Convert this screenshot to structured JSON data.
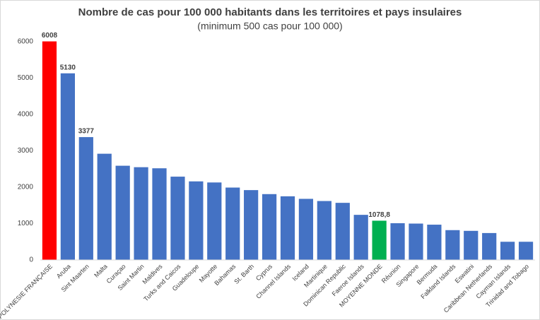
{
  "chart_data": {
    "type": "bar",
    "title": "Nombre de cas pour 100 000 habitants dans les territoires et pays insulaires",
    "subtitle": "(minimum 500 cas pour 100 000)",
    "categories": [
      "POLYNESIE FRANÇAISE",
      "Aruba",
      "Sint Maarten",
      "Malta",
      "Curaçao",
      "Saint Martin",
      "Maldives",
      "Turks and Caicos",
      "Guadeloupe",
      "Mayotte",
      "Bahamas",
      "St. Barth",
      "Cyprus",
      "Channel Islands",
      "Iceland",
      "Martinique",
      "Dominican Republic",
      "Faeroe Islands",
      "MOYENNE MONDE",
      "Réunion",
      "Singapore",
      "Bermuda",
      "Falkland Islands",
      "Eswatini",
      "Caribbean Netherlands",
      "Cayman Islands",
      "Trinidad and Tobago"
    ],
    "values": [
      6008,
      5130,
      3377,
      2920,
      2590,
      2550,
      2520,
      2290,
      2160,
      2130,
      1990,
      1920,
      1810,
      1750,
      1680,
      1620,
      1570,
      1240,
      1078.8,
      1010,
      1000,
      970,
      820,
      800,
      740,
      500,
      500
    ],
    "value_labels": [
      "6008",
      "5130",
      "3377",
      null,
      null,
      null,
      null,
      null,
      null,
      null,
      null,
      null,
      null,
      null,
      null,
      null,
      null,
      null,
      "1078,8",
      null,
      null,
      null,
      null,
      null,
      null,
      null,
      null
    ],
    "colors": [
      "#ff0000",
      "#4472c4",
      "#4472c4",
      "#4472c4",
      "#4472c4",
      "#4472c4",
      "#4472c4",
      "#4472c4",
      "#4472c4",
      "#4472c4",
      "#4472c4",
      "#4472c4",
      "#4472c4",
      "#4472c4",
      "#4472c4",
      "#4472c4",
      "#4472c4",
      "#4472c4",
      "#00b050",
      "#4472c4",
      "#4472c4",
      "#4472c4",
      "#4472c4",
      "#4472c4",
      "#4472c4",
      "#4472c4",
      "#4472c4"
    ],
    "ylim": [
      0,
      6000
    ],
    "yticks": [
      0,
      1000,
      2000,
      3000,
      4000,
      5000,
      6000
    ],
    "grid": false
  }
}
